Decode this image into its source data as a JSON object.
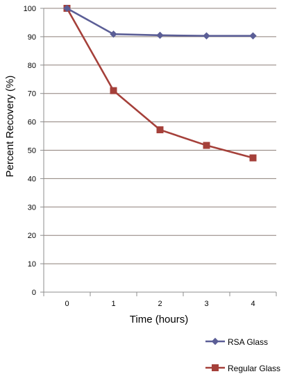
{
  "chart_data": {
    "type": "line",
    "title": "",
    "xlabel": "Time (hours)",
    "ylabel": "Percent Recovery (%)",
    "x": [
      0,
      1,
      2,
      3,
      4
    ],
    "xlim": [
      -0.5,
      4.5
    ],
    "ylim": [
      0,
      100
    ],
    "y_ticks": [
      0,
      10,
      20,
      30,
      40,
      50,
      60,
      70,
      80,
      90,
      100
    ],
    "grid": "horizontal",
    "legend_position": "bottom-right",
    "series": [
      {
        "name": "RSA Glass",
        "values": [
          100,
          90.9,
          90.5,
          90.3,
          90.3
        ],
        "color": "#5B5E96",
        "marker": "diamond"
      },
      {
        "name": "Regular Glass",
        "values": [
          100,
          71,
          57.2,
          51.7,
          47.3
        ],
        "color": "#A5403A",
        "marker": "square"
      }
    ]
  }
}
